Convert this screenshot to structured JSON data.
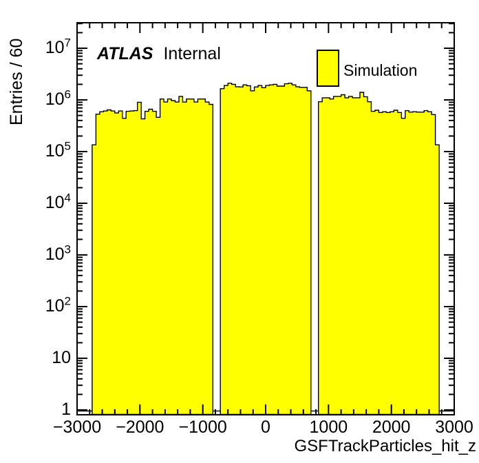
{
  "plot_labels": {
    "experiment": "ATLAS",
    "status": "Internal"
  },
  "legend": {
    "entries": [
      {
        "label": "Simulation",
        "fill": "#ffff00",
        "line": "#000000"
      }
    ]
  },
  "axes": {
    "x": {
      "title": "GSFTrackParticles_hit_z",
      "min": -3000,
      "max": 3000,
      "tick_values": [
        -3000,
        -2000,
        -1000,
        0,
        1000,
        2000,
        3000
      ],
      "tick_labels": [
        "−3000",
        "−2000",
        "−1000",
        "0",
        "1000",
        "2000",
        "3000"
      ],
      "minor_step": 200
    },
    "y": {
      "title": "Entries / 60",
      "scale": "log",
      "min": 1,
      "max": 30000000,
      "ticks": [
        {
          "value": 1,
          "base": "1",
          "exp": ""
        },
        {
          "value": 10,
          "base": "10",
          "exp": ""
        },
        {
          "value": 100,
          "base": "10",
          "exp": "2"
        },
        {
          "value": 1000,
          "base": "10",
          "exp": "3"
        },
        {
          "value": 10000,
          "base": "10",
          "exp": "4"
        },
        {
          "value": 100000,
          "base": "10",
          "exp": "5"
        },
        {
          "value": 1000000,
          "base": "10",
          "exp": "6"
        },
        {
          "value": 10000000,
          "base": "10",
          "exp": "7"
        }
      ]
    }
  },
  "chart_data": {
    "type": "bar",
    "histogram": true,
    "title": "",
    "xlabel": "GSFTrackParticles_hit_z",
    "ylabel": "Entries / 60",
    "xlim": [
      -3000,
      3000
    ],
    "ylim_log": [
      1,
      30000000
    ],
    "bin_start": -3000,
    "bin_width": 60,
    "n_bins": 100,
    "fill_color": "#ffff00",
    "line_color": "#000000",
    "values": [
      0,
      0,
      0,
      0,
      135000,
      530000,
      590000,
      610000,
      640000,
      610000,
      560000,
      610000,
      440000,
      600000,
      610000,
      620000,
      900000,
      430000,
      600000,
      660000,
      600000,
      460000,
      1040000,
      910000,
      1040000,
      970000,
      910000,
      1170000,
      910000,
      1040000,
      1040000,
      910000,
      1040000,
      1040000,
      910000,
      820000,
      0,
      0,
      1650000,
      1900000,
      2100000,
      2000000,
      1800000,
      1780000,
      1950000,
      1880000,
      1500000,
      1780000,
      1900000,
      1720000,
      1900000,
      1950000,
      2000000,
      1850000,
      1850000,
      2050000,
      2100000,
      1950000,
      1800000,
      1750000,
      1750000,
      1500000,
      0,
      0,
      920000,
      1100000,
      1100000,
      1040000,
      1170000,
      1170000,
      1260000,
      1100000,
      1170000,
      1100000,
      1100000,
      1400000,
      1150000,
      920000,
      600000,
      630000,
      570000,
      590000,
      570000,
      590000,
      630000,
      570000,
      440000,
      620000,
      580000,
      590000,
      580000,
      580000,
      620000,
      590000,
      520000,
      135000,
      0,
      0,
      0,
      0
    ]
  }
}
